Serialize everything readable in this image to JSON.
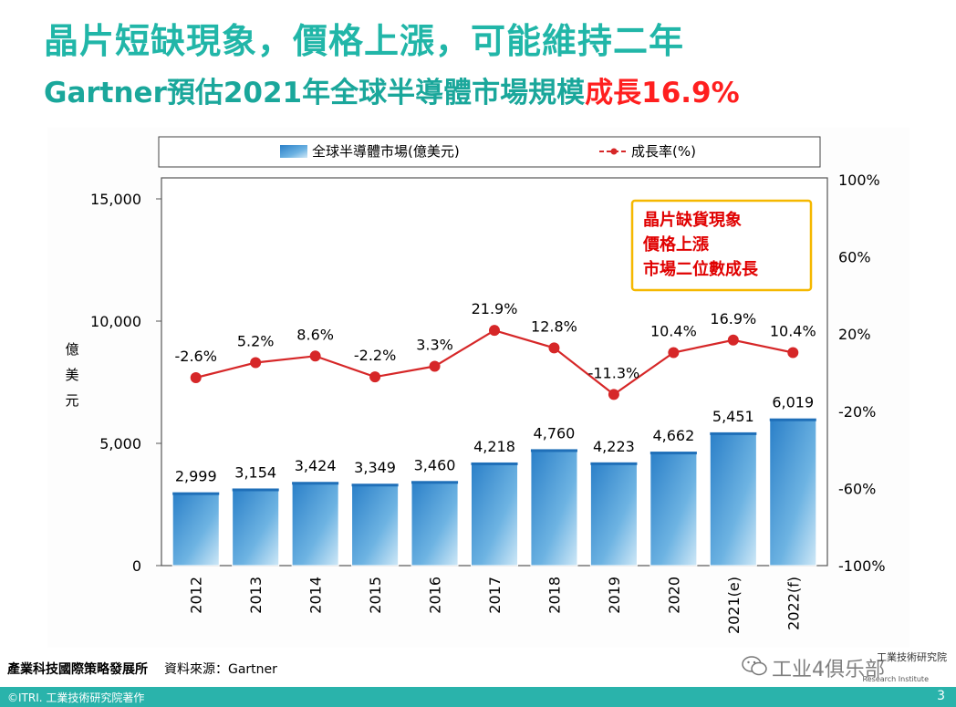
{
  "slide": {
    "title_line1": "晶片短缺現象，價格上漲，可能維持二年",
    "title_line2_prefix": "Gartner預估2021年全球半導體市場規模",
    "title_line2_highlight": "成長16.9%",
    "source_org": "產業科技國際策略發展所",
    "source_note": "資料來源：Gartner",
    "copyright": "©ITRI. 工業技術研究院著作",
    "page_number": "3",
    "logo_text": "工业4俱乐部",
    "logo_sub": "工業技術研究院",
    "logo_sub2": "Research Institute"
  },
  "chart_data": {
    "type": "bar",
    "categories": [
      "2012",
      "2013",
      "2014",
      "2015",
      "2016",
      "2017",
      "2018",
      "2019",
      "2020",
      "2021(e)",
      "2022(f)"
    ],
    "series": [
      {
        "name": "全球半導體市場(億美元)",
        "axis": "left",
        "kind": "bar",
        "color": "#3a8fd0",
        "values": [
          2999,
          3154,
          3424,
          3349,
          3460,
          4218,
          4760,
          4223,
          4662,
          5451,
          6019
        ],
        "labels": [
          "2,999",
          "3,154",
          "3,424",
          "3,349",
          "3,460",
          "4,218",
          "4,760",
          "4,223",
          "4,662",
          "5,451",
          "6,019"
        ]
      },
      {
        "name": "成長率(%)",
        "axis": "right",
        "kind": "line",
        "color": "#d62728",
        "values": [
          -2.6,
          5.2,
          8.6,
          -2.2,
          3.3,
          21.9,
          12.8,
          -11.3,
          10.4,
          16.9,
          10.4
        ],
        "labels": [
          "-2.6%",
          "5.2%",
          "8.6%",
          "-2.2%",
          "3.3%",
          "21.9%",
          "12.8%",
          "-11.3%",
          "10.4%",
          "16.9%",
          "10.4%"
        ]
      }
    ],
    "y_left": {
      "ylabel": "億美元",
      "ylim": [
        0,
        15000
      ],
      "ticks": [
        0,
        5000,
        10000,
        15000
      ],
      "tick_labels": [
        "0",
        "5,000",
        "10,000",
        "15,000"
      ]
    },
    "y_right": {
      "ylim": [
        -100,
        100
      ],
      "ticks": [
        -100,
        -60,
        -20,
        20,
        60,
        100
      ],
      "tick_labels": [
        "-100%",
        "-60%",
        "-20%",
        "20%",
        "60%",
        "100%"
      ]
    },
    "legend": {
      "placement": "top",
      "items": [
        "全球半導體市場(億美元)",
        "成長率(%)"
      ]
    },
    "annotation": {
      "lines": [
        "晶片缺貨現象",
        "價格上漲",
        "市場二位數成長"
      ],
      "placement": "top-right",
      "border_color": "#f5b800",
      "text_color": "#e00000"
    },
    "grid": false
  }
}
